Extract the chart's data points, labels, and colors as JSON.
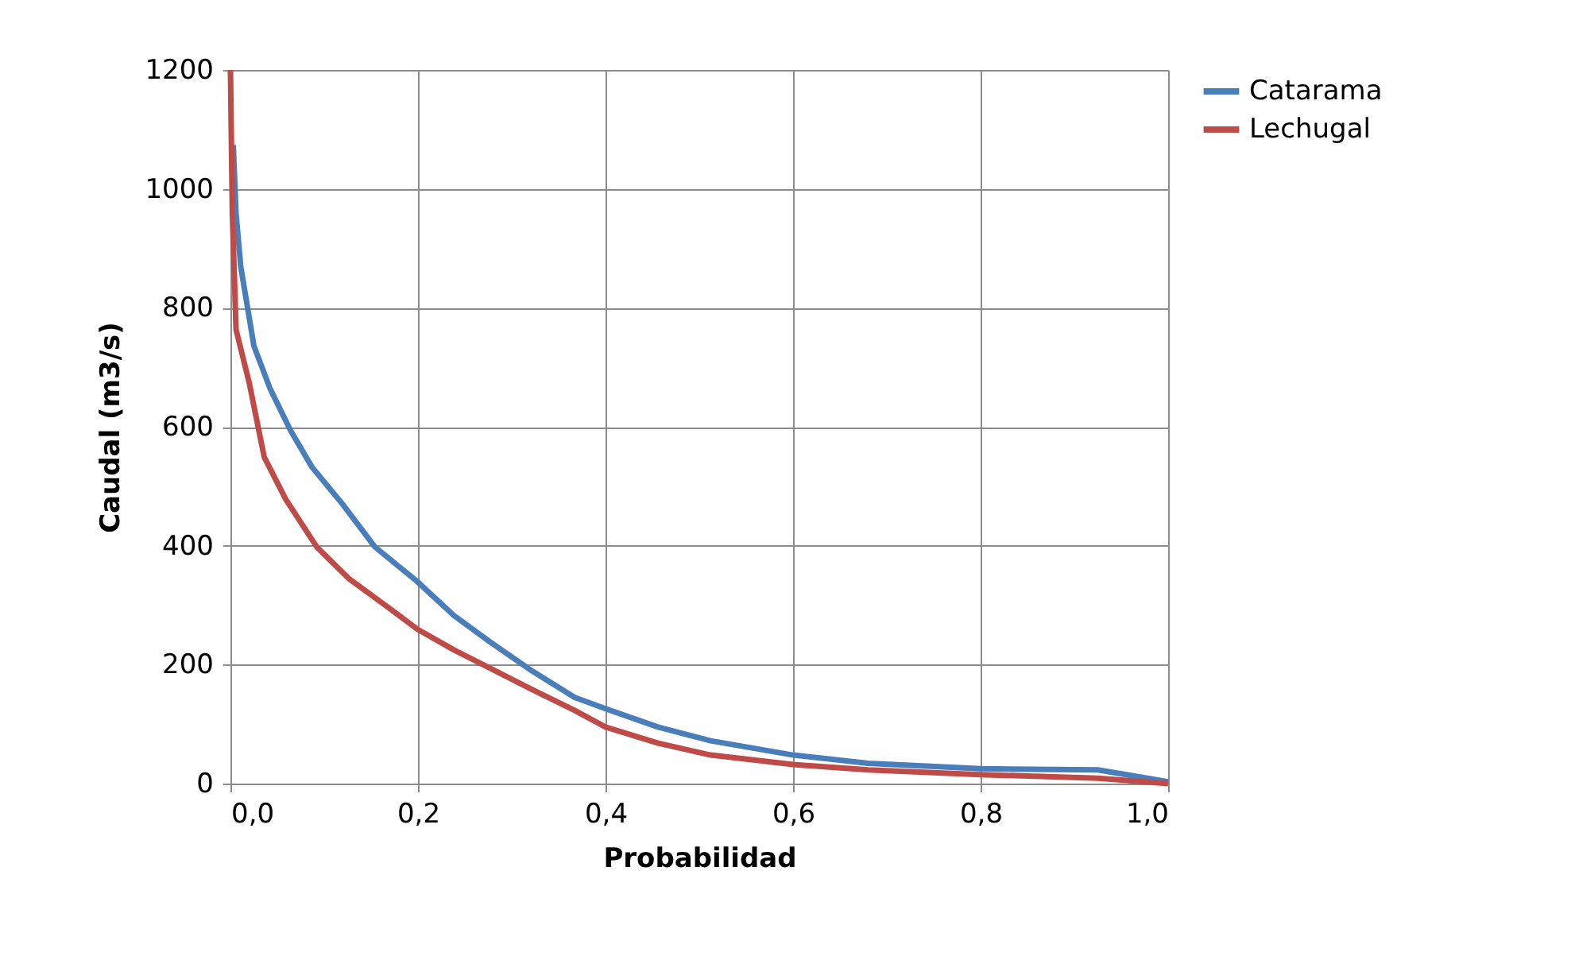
{
  "chart_data": {
    "type": "line",
    "xlabel": "Probabilidad",
    "ylabel": "Caudal (m3/s)",
    "xlim": [
      0,
      1
    ],
    "ylim": [
      0,
      1200
    ],
    "xticks": [
      {
        "value": 0,
        "label": "0,0"
      },
      {
        "value": 0.2,
        "label": "0,2"
      },
      {
        "value": 0.4,
        "label": "0,4"
      },
      {
        "value": 0.6,
        "label": "0,6"
      },
      {
        "value": 0.8,
        "label": "0,8"
      },
      {
        "value": 1,
        "label": "1,0"
      }
    ],
    "yticks": [
      0,
      200,
      400,
      600,
      800,
      1000,
      1200
    ],
    "grid": true,
    "legend": "right",
    "marker": "none",
    "line_style": "solid",
    "series": [
      {
        "name": "Catarama",
        "color": "#4a7ebb",
        "x": [
          0.003,
          0.006,
          0.011,
          0.025,
          0.042,
          0.064,
          0.087,
          0.12,
          0.154,
          0.199,
          0.238,
          0.277,
          0.322,
          0.367,
          0.4,
          0.456,
          0.512,
          0.6,
          0.68,
          0.8,
          0.925,
          0.959,
          1.0
        ],
        "values": [
          1074,
          958,
          869,
          736,
          665,
          594,
          532,
          469,
          398,
          340,
          283,
          238,
          189,
          145,
          126,
          95,
          72,
          48,
          34,
          25,
          23,
          14,
          3
        ]
      },
      {
        "name": "Lechugal",
        "color": "#be4b48",
        "x": [
          0,
          0.002,
          0.006,
          0.02,
          0.036,
          0.059,
          0.092,
          0.126,
          0.165,
          0.199,
          0.238,
          0.277,
          0.322,
          0.367,
          0.4,
          0.456,
          0.512,
          0.6,
          0.68,
          0.8,
          0.925,
          1.0
        ],
        "values": [
          1200,
          958,
          763,
          674,
          549,
          478,
          398,
          345,
          300,
          260,
          225,
          194,
          158,
          123,
          95,
          68,
          48,
          32,
          23,
          15,
          9,
          0
        ]
      }
    ]
  }
}
